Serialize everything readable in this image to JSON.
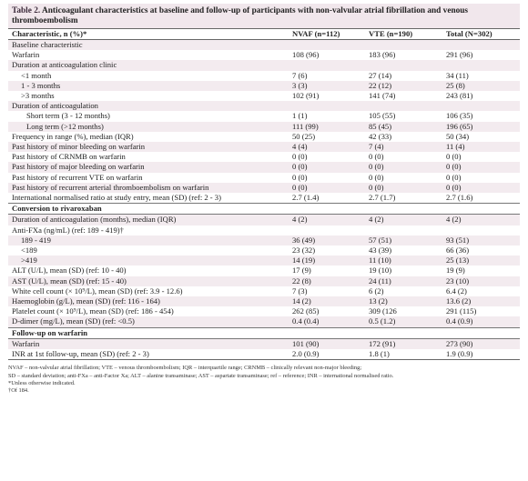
{
  "caption": {
    "label": "Table 2.",
    "title": "Anticoagulant characteristics at baseline and follow-up of participants with non-valvular atrial fibrillation and venous thromboembolism"
  },
  "columns": [
    "Characteristic, n (%)*",
    "NVAF (n=112)",
    "VTE (n=190)",
    "Total (N=302)"
  ],
  "rows": [
    {
      "label": "Baseline characteristic",
      "values": [
        "",
        "",
        ""
      ],
      "indent": 0,
      "kind": "plain"
    },
    {
      "label": "Warfarin",
      "values": [
        "108 (96)",
        "183 (96)",
        "291 (96)"
      ],
      "indent": 0,
      "kind": "plain"
    },
    {
      "label": "Duration at anticoagulation clinic",
      "values": [
        "",
        "",
        ""
      ],
      "indent": 0,
      "kind": "plain"
    },
    {
      "label": "<1 month",
      "values": [
        "7 (6)",
        "27 (14)",
        "34 (11)"
      ],
      "indent": 1,
      "kind": "plain"
    },
    {
      "label": "1 - 3 months",
      "values": [
        "3 (3)",
        "22 (12)",
        "25 (8)"
      ],
      "indent": 1,
      "kind": "plain"
    },
    {
      "label": ">3 months",
      "values": [
        "102 (91)",
        "141 (74)",
        "243 (81)"
      ],
      "indent": 1,
      "kind": "plain"
    },
    {
      "label": "Duration of anticoagulation",
      "values": [
        "",
        "",
        ""
      ],
      "indent": 0,
      "kind": "plain"
    },
    {
      "label": "Short term (3 - 12 months)",
      "values": [
        "1 (1)",
        "105 (55)",
        "106 (35)"
      ],
      "indent": 2,
      "kind": "plain"
    },
    {
      "label": "Long term (>12 months)",
      "values": [
        "111 (99)",
        "85 (45)",
        "196 (65)"
      ],
      "indent": 2,
      "kind": "plain"
    },
    {
      "label": "Frequency in range (%), median (IQR)",
      "values": [
        "50 (25)",
        "42 (33)",
        "50 (34)"
      ],
      "indent": 0,
      "kind": "plain"
    },
    {
      "label": "Past history of minor bleeding on warfarin",
      "values": [
        "4 (4)",
        "7 (4)",
        "11 (4)"
      ],
      "indent": 0,
      "kind": "plain"
    },
    {
      "label": "Past history of CRNMB on warfarin",
      "values": [
        "0 (0)",
        "0 (0)",
        "0 (0)"
      ],
      "indent": 0,
      "kind": "plain"
    },
    {
      "label": "Past history of major bleeding on warfarin",
      "values": [
        "0 (0)",
        "0 (0)",
        "0 (0)"
      ],
      "indent": 0,
      "kind": "plain"
    },
    {
      "label": "Past history of recurrent VTE on warfarin",
      "values": [
        "0 (0)",
        "0 (0)",
        "0 (0)"
      ],
      "indent": 0,
      "kind": "plain"
    },
    {
      "label": "Past history of recurrent arterial thromboembolism on warfarin",
      "values": [
        "0 (0)",
        "0 (0)",
        "0 (0)"
      ],
      "indent": 0,
      "kind": "plain"
    },
    {
      "label": "International normalised ratio at study entry, mean (SD) (ref: 2 - 3)",
      "values": [
        "2.7 (1.4)",
        "2.7 (1.7)",
        "2.7 (1.6)"
      ],
      "indent": 0,
      "kind": "plain"
    },
    {
      "label": "Conversion to rivaroxaban",
      "values": [
        "",
        "",
        ""
      ],
      "indent": 0,
      "kind": "section"
    },
    {
      "label": "Duration of anticoagulation (months), median (IQR)",
      "values": [
        "4 (2)",
        "4 (2)",
        "4 (2)"
      ],
      "indent": 0,
      "kind": "plain"
    },
    {
      "label": "Anti-FXa (ng/mL) (ref: 189 - 419)†",
      "values": [
        "",
        "",
        ""
      ],
      "indent": 0,
      "kind": "plain"
    },
    {
      "label": "189 - 419",
      "values": [
        "36 (49)",
        "57 (51)",
        "93 (51)"
      ],
      "indent": 1,
      "kind": "plain"
    },
    {
      "label": "<189",
      "values": [
        "23 (32)",
        "43 (39)",
        "66 (36)"
      ],
      "indent": 1,
      "kind": "plain"
    },
    {
      "label": ">419",
      "values": [
        "14 (19)",
        "11 (10)",
        "25 (13)"
      ],
      "indent": 1,
      "kind": "plain"
    },
    {
      "label": "ALT (U/L), mean (SD) (ref: 10 - 40)",
      "values": [
        "17 (9)",
        "19 (10)",
        "19 (9)"
      ],
      "indent": 0,
      "kind": "plain"
    },
    {
      "label": "AST (U/L), mean (SD) (ref: 15 - 40)",
      "values": [
        "22 (8)",
        "24 (11)",
        "23 (10)"
      ],
      "indent": 0,
      "kind": "plain"
    },
    {
      "label": "White cell count (× 10⁹/L), mean (SD) (ref: 3.9 - 12.6)",
      "values": [
        "7 (3)",
        "6 (2)",
        "6.4 (2)"
      ],
      "indent": 0,
      "kind": "plain"
    },
    {
      "label": "Haemoglobin (g/L), mean (SD) (ref: 116 - 164)",
      "values": [
        "14 (2)",
        "13 (2)",
        "13.6 (2)"
      ],
      "indent": 0,
      "kind": "plain"
    },
    {
      "label": "Platelet count (× 10⁹/L), mean (SD) (ref: 186 - 454)",
      "values": [
        "262 (85)",
        "309 (126",
        "291 (115)"
      ],
      "indent": 0,
      "kind": "plain"
    },
    {
      "label": "D-dimer (mg/L), mean (SD) (ref: <0.5)",
      "values": [
        "0.4 (0.4)",
        "0.5 (1.2)",
        "0.4 (0.9)"
      ],
      "indent": 0,
      "kind": "plain"
    },
    {
      "label": "Follow-up on warfarin",
      "values": [
        "",
        "",
        ""
      ],
      "indent": 0,
      "kind": "section"
    },
    {
      "label": "Warfarin",
      "values": [
        "101 (90)",
        "172 (91)",
        "273 (90)"
      ],
      "indent": 0,
      "kind": "plain"
    },
    {
      "label": "INR at 1st follow-up, mean (SD) (ref: 2 - 3)",
      "values": [
        "2.0 (0.9)",
        "1.8 (1)",
        "1.9 (0.9)"
      ],
      "indent": 0,
      "kind": "plain"
    }
  ],
  "notes": [
    "NVAF – non-valvular atrial fibrillation; VTE – venous thromboembolism; IQR – interquartile range; CRNMB – clinically relevant non-major bleeding;",
    "SD – standard deviation; anti-FXa – anti-Factor Xa; ALT – alanine transaminase; AST – aspartate transaminase; ref – reference; INR – international normalised ratio.",
    "*Unless otherwise indicated.",
    "†Of 184."
  ],
  "colors": {
    "caption_bg": "#f1e7ec",
    "row_shade": "#f3ebef",
    "rule": "#666666"
  }
}
